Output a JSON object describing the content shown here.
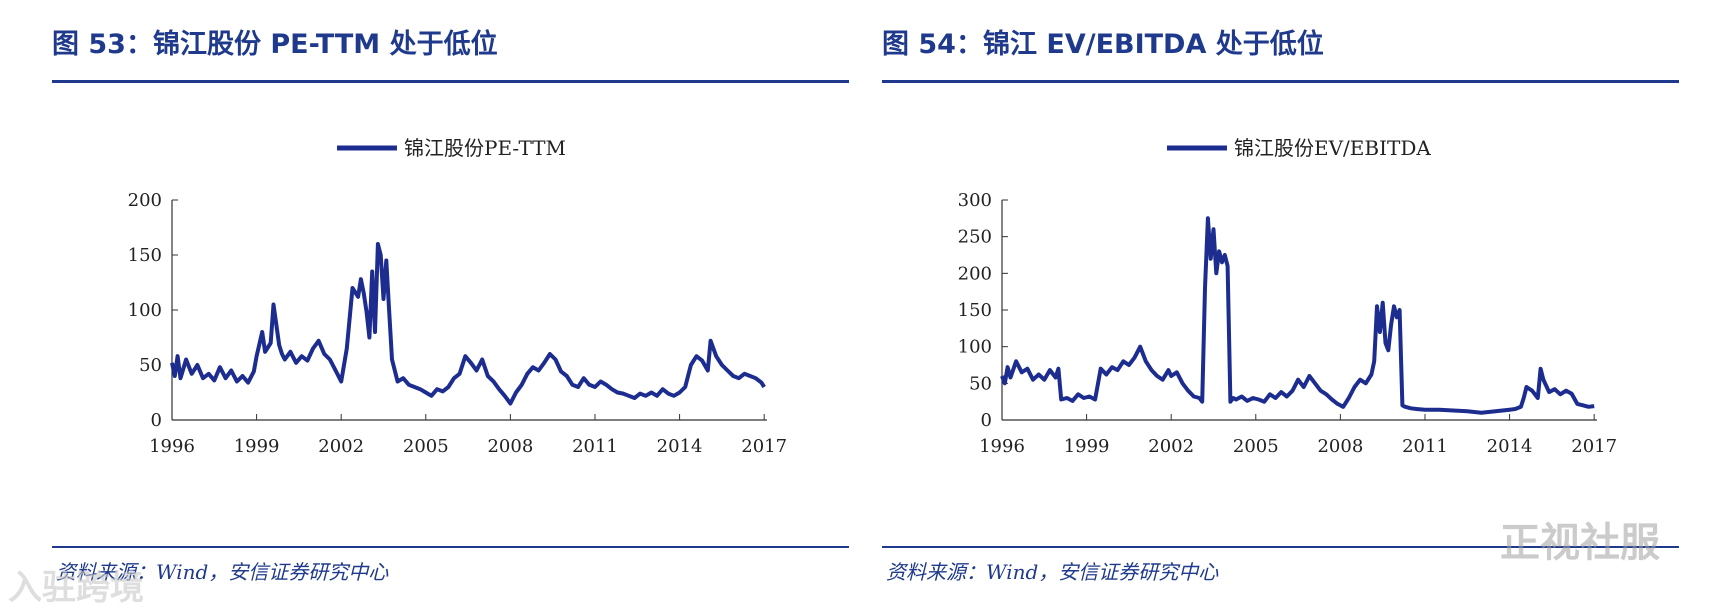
{
  "panels": [
    {
      "title": "图 53：锦江股份 PE-TTM 处于低位",
      "source": "资料来源：Wind，安信证券研究中心"
    },
    {
      "title": "图 54：锦江 EV/EBITDA 处于低位",
      "source": "资料来源：Wind，安信证券研究中心"
    }
  ],
  "watermarks": {
    "left": "入驻跨境",
    "right": "正视社服"
  },
  "colors": {
    "accent": "#1f3a8c",
    "line": "#1c2d8f"
  },
  "chart_data": [
    {
      "type": "line",
      "title": "",
      "xlabel": "",
      "ylabel": "",
      "xlim": [
        1996,
        2017.1
      ],
      "ylim": [
        0,
        200
      ],
      "yticks": [
        0,
        50,
        100,
        150,
        200
      ],
      "xticks": [
        1996,
        1999,
        2002,
        2005,
        2008,
        2011,
        2014,
        2017
      ],
      "grid": false,
      "legend": "top-center",
      "series": [
        {
          "name": "锦江股份PE-TTM",
          "x": [
            1996.0,
            1996.1,
            1996.2,
            1996.3,
            1996.5,
            1996.7,
            1996.9,
            1997.1,
            1997.3,
            1997.5,
            1997.7,
            1997.9,
            1998.1,
            1998.3,
            1998.5,
            1998.7,
            1998.9,
            1999.0,
            1999.2,
            1999.3,
            1999.5,
            1999.6,
            1999.8,
            1999.9,
            2000.0,
            2000.2,
            2000.4,
            2000.6,
            2000.8,
            2001.0,
            2001.2,
            2001.4,
            2001.6,
            2001.8,
            2001.9,
            2002.0,
            2002.2,
            2002.4,
            2002.6,
            2002.7,
            2002.8,
            2002.9,
            2003.0,
            2003.1,
            2003.2,
            2003.3,
            2003.4,
            2003.5,
            2003.6,
            2003.7,
            2003.8,
            2004.0,
            2004.2,
            2004.4,
            2004.6,
            2004.8,
            2005.0,
            2005.2,
            2005.4,
            2005.6,
            2005.8,
            2006.0,
            2006.2,
            2006.4,
            2006.6,
            2006.8,
            2007.0,
            2007.2,
            2007.4,
            2007.6,
            2007.8,
            2008.0,
            2008.2,
            2008.4,
            2008.6,
            2008.8,
            2009.0,
            2009.2,
            2009.4,
            2009.6,
            2009.8,
            2010.0,
            2010.2,
            2010.4,
            2010.6,
            2010.8,
            2011.0,
            2011.2,
            2011.4,
            2011.6,
            2011.8,
            2012.0,
            2012.2,
            2012.4,
            2012.6,
            2012.8,
            2013.0,
            2013.2,
            2013.4,
            2013.6,
            2013.8,
            2014.0,
            2014.2,
            2014.4,
            2014.6,
            2014.8,
            2015.0,
            2015.1,
            2015.3,
            2015.5,
            2015.7,
            2015.9,
            2016.1,
            2016.3,
            2016.5,
            2016.7,
            2016.9,
            2017.0
          ],
          "values": [
            52,
            40,
            58,
            38,
            55,
            42,
            50,
            38,
            42,
            36,
            48,
            38,
            45,
            35,
            40,
            34,
            44,
            58,
            80,
            62,
            70,
            105,
            68,
            60,
            55,
            62,
            52,
            58,
            54,
            65,
            72,
            60,
            55,
            45,
            40,
            35,
            65,
            120,
            112,
            128,
            115,
            98,
            75,
            135,
            80,
            160,
            150,
            110,
            145,
            100,
            55,
            35,
            38,
            32,
            30,
            28,
            25,
            22,
            28,
            26,
            30,
            38,
            42,
            58,
            52,
            45,
            55,
            40,
            35,
            28,
            22,
            15,
            25,
            32,
            42,
            48,
            45,
            52,
            60,
            55,
            44,
            40,
            32,
            30,
            38,
            32,
            30,
            35,
            32,
            28,
            25,
            24,
            22,
            20,
            24,
            22,
            25,
            22,
            28,
            24,
            22,
            25,
            30,
            50,
            58,
            54,
            45,
            72,
            58,
            50,
            45,
            40,
            38,
            42,
            40,
            38,
            34,
            30
          ]
        }
      ]
    },
    {
      "type": "line",
      "title": "",
      "xlabel": "",
      "ylabel": "",
      "xlim": [
        1996,
        2017.1
      ],
      "ylim": [
        0,
        300
      ],
      "yticks": [
        0,
        50,
        100,
        150,
        200,
        250,
        300
      ],
      "xticks": [
        1996,
        1999,
        2002,
        2005,
        2008,
        2011,
        2014,
        2017
      ],
      "grid": false,
      "legend": "top-center",
      "series": [
        {
          "name": "锦江股份EV/EBITDA",
          "x": [
            1996.0,
            1996.1,
            1996.2,
            1996.3,
            1996.5,
            1996.7,
            1996.9,
            1997.1,
            1997.3,
            1997.5,
            1997.7,
            1997.9,
            1998.0,
            1998.1,
            1998.3,
            1998.5,
            1998.7,
            1998.9,
            1999.1,
            1999.3,
            1999.5,
            1999.7,
            1999.9,
            2000.1,
            2000.3,
            2000.5,
            2000.7,
            2000.9,
            2001.1,
            2001.3,
            2001.5,
            2001.7,
            2001.9,
            2002.0,
            2002.2,
            2002.4,
            2002.6,
            2002.8,
            2003.0,
            2003.1,
            2003.2,
            2003.3,
            2003.4,
            2003.5,
            2003.6,
            2003.7,
            2003.8,
            2003.9,
            2004.0,
            2004.1,
            2004.2,
            2004.3,
            2004.5,
            2004.7,
            2004.9,
            2005.1,
            2005.3,
            2005.5,
            2005.7,
            2005.9,
            2006.1,
            2006.3,
            2006.5,
            2006.7,
            2006.9,
            2007.1,
            2007.3,
            2007.5,
            2007.7,
            2007.9,
            2008.1,
            2008.3,
            2008.5,
            2008.7,
            2008.9,
            2009.1,
            2009.2,
            2009.3,
            2009.4,
            2009.5,
            2009.6,
            2009.7,
            2009.8,
            2009.9,
            2010.0,
            2010.1,
            2010.2,
            2010.3,
            2010.5,
            2010.7,
            2011.0,
            2011.5,
            2012.0,
            2012.5,
            2013.0,
            2013.5,
            2014.0,
            2014.2,
            2014.4,
            2014.5,
            2014.6,
            2014.8,
            2015.0,
            2015.1,
            2015.2,
            2015.4,
            2015.6,
            2015.8,
            2016.0,
            2016.2,
            2016.4,
            2016.6,
            2016.8,
            2017.0
          ],
          "values": [
            60,
            50,
            72,
            58,
            80,
            65,
            70,
            55,
            62,
            55,
            68,
            58,
            70,
            28,
            30,
            26,
            35,
            30,
            32,
            28,
            70,
            62,
            72,
            68,
            80,
            75,
            85,
            100,
            80,
            68,
            60,
            55,
            68,
            60,
            65,
            50,
            40,
            32,
            30,
            25,
            180,
            275,
            220,
            260,
            200,
            230,
            215,
            225,
            210,
            25,
            30,
            28,
            32,
            26,
            30,
            28,
            25,
            35,
            30,
            38,
            32,
            40,
            55,
            45,
            60,
            50,
            40,
            35,
            28,
            22,
            18,
            30,
            45,
            55,
            50,
            62,
            80,
            155,
            120,
            160,
            105,
            95,
            130,
            155,
            140,
            150,
            20,
            18,
            16,
            15,
            14,
            14,
            13,
            12,
            10,
            12,
            14,
            15,
            18,
            30,
            45,
            40,
            30,
            70,
            55,
            38,
            42,
            35,
            40,
            36,
            22,
            20,
            18,
            19
          ]
        }
      ]
    }
  ]
}
